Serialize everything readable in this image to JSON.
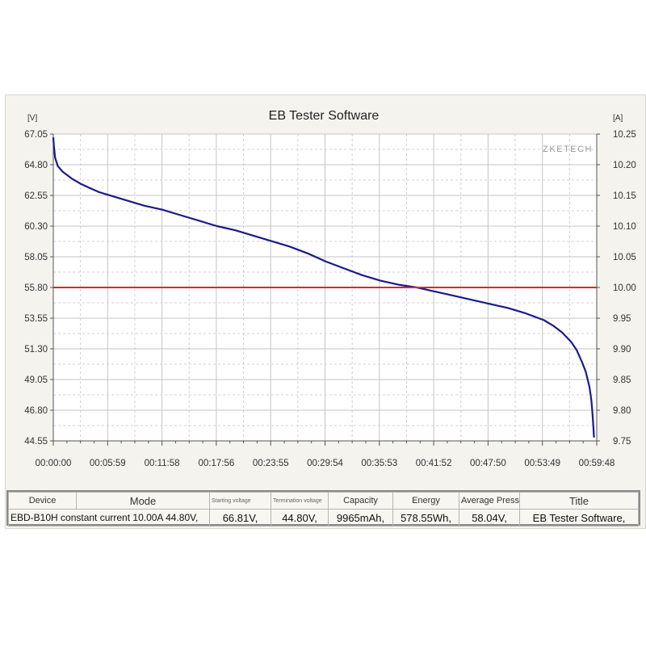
{
  "window": {
    "watermark": "ZKETECH"
  },
  "summary": {
    "headers": [
      "Device",
      "Mode",
      "Starting voltage",
      "Termination voltage",
      "Capacity",
      "Energy",
      "Average Pressu",
      "Title"
    ],
    "values": [
      "EBD-B10H constant current 10.00A 44.80V,",
      "",
      "66.81V,",
      "44.80V,",
      "9965mAh,",
      "578.55Wh,",
      "58.04V,",
      "EB Tester Software,"
    ]
  },
  "chart_data": {
    "type": "line",
    "title": "EB Tester Software",
    "ylabel": "[V]",
    "y2label": "[A]",
    "xlabel": "",
    "x_ticks": [
      "00:00:00",
      "00:05:59",
      "00:11:58",
      "00:17:56",
      "00:23:55",
      "00:29:54",
      "00:35:53",
      "00:41:52",
      "00:47:50",
      "00:53:49",
      "00:59:48"
    ],
    "y_ticks": [
      "67.05",
      "64.80",
      "62.55",
      "60.30",
      "58.05",
      "55.80",
      "53.55",
      "51.30",
      "49.05",
      "46.80",
      "44.55"
    ],
    "y2_ticks": [
      "10.25",
      "10.20",
      "10.15",
      "10.10",
      "10.05",
      "10.00",
      "9.95",
      "9.90",
      "9.85",
      "9.80",
      "9.75"
    ],
    "xlim_minutes": [
      0,
      59.8
    ],
    "ylim": [
      44.55,
      67.05
    ],
    "y2lim": [
      9.75,
      10.25
    ],
    "grid": true,
    "series": [
      {
        "axis": "left",
        "color": "#1a1a8c",
        "x_minutes": [
          0,
          0.06,
          0.2,
          0.5,
          1.0,
          2.0,
          3.0,
          4.0,
          5.0,
          6.0,
          8.0,
          10.0,
          12.0,
          14.0,
          16.0,
          18.0,
          20.0,
          22.0,
          24.0,
          26.0,
          28.0,
          30.0,
          32.0,
          34.0,
          36.0,
          38.0,
          40.0,
          42.0,
          44.0,
          46.0,
          48.0,
          50.0,
          52.0,
          54.0,
          55.0,
          56.0,
          57.0,
          57.6,
          58.2,
          58.6,
          59.0,
          59.2,
          59.3,
          59.4,
          59.45,
          59.5
        ],
        "values": [
          66.8,
          66.2,
          65.3,
          64.7,
          64.3,
          63.8,
          63.4,
          63.1,
          62.8,
          62.6,
          62.2,
          61.8,
          61.5,
          61.1,
          60.7,
          60.3,
          60.0,
          59.6,
          59.2,
          58.8,
          58.3,
          57.7,
          57.2,
          56.7,
          56.3,
          56.0,
          55.8,
          55.5,
          55.2,
          54.9,
          54.6,
          54.3,
          53.9,
          53.4,
          53.0,
          52.5,
          51.8,
          51.2,
          50.3,
          49.6,
          48.5,
          47.6,
          46.8,
          45.9,
          45.3,
          44.8
        ]
      },
      {
        "axis": "right",
        "color": "#d42a2a",
        "x_minutes": [
          0,
          59.8
        ],
        "values": [
          10.0,
          10.0
        ]
      }
    ]
  }
}
